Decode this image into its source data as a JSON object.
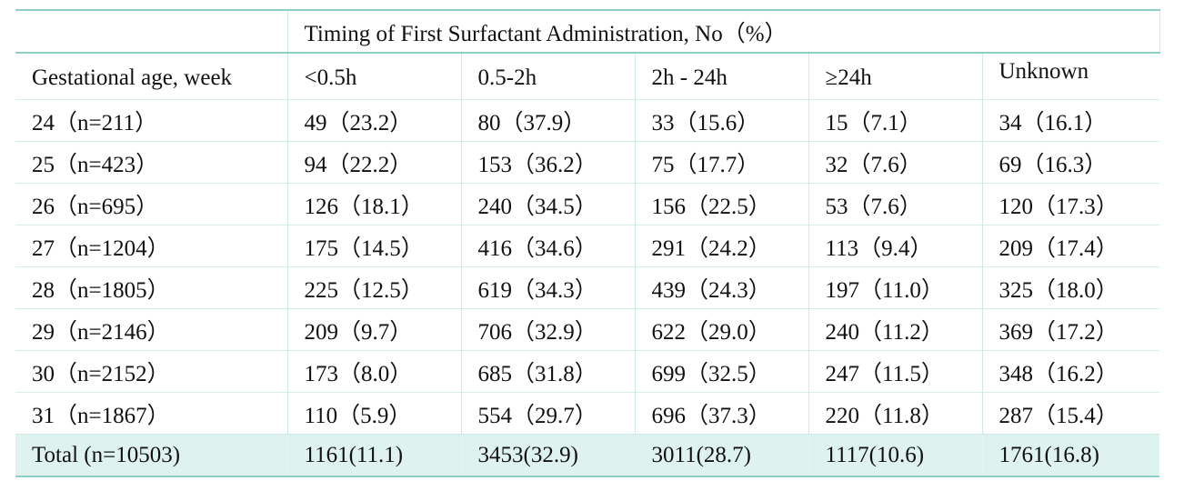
{
  "table": {
    "title": "Timing of First Surfactant Administration, No（%）",
    "columns": [
      "Gestational age, week",
      "<0.5h",
      "0.5-2h",
      "2h - 24h",
      "≥24h",
      "Unknown"
    ],
    "rows": [
      [
        "24（n=211）",
        "49（23.2）",
        "80（37.9）",
        "33（15.6）",
        "15（7.1）",
        "34（16.1）"
      ],
      [
        "25（n=423）",
        "94（22.2）",
        "153（36.2）",
        "75（17.7）",
        "32（7.6）",
        "69（16.3）"
      ],
      [
        "26（n=695）",
        "126（18.1）",
        "240（34.5）",
        "156（22.5）",
        "53（7.6）",
        "120（17.3）"
      ],
      [
        "27（n=1204）",
        "175（14.5）",
        "416（34.6）",
        "291（24.2）",
        "113（9.4）",
        "209（17.4）"
      ],
      [
        "28（n=1805）",
        "225（12.5）",
        "619（34.3）",
        "439（24.3）",
        "197（11.0）",
        "325（18.0）"
      ],
      [
        "29（n=2146）",
        "209（9.7）",
        "706（32.9）",
        "622（29.0）",
        "240（11.2）",
        "369（17.2）"
      ],
      [
        "30（n=2152）",
        "173（8.0）",
        "685（31.8）",
        "699（32.5）",
        "247（11.5）",
        "348（16.2）"
      ],
      [
        "31（n=1867）",
        "110（5.9）",
        "554（29.7）",
        "696（37.3）",
        "220（11.8）",
        "287（15.4）"
      ]
    ],
    "total": [
      "Total (n=10503)",
      "1161(11.1)",
      "3453(32.9)",
      "3011(28.7)",
      "1117(10.6)",
      "1761(16.8)"
    ]
  },
  "colors": {
    "rule": "#8ccfc8",
    "total_background": "#def2f0"
  }
}
